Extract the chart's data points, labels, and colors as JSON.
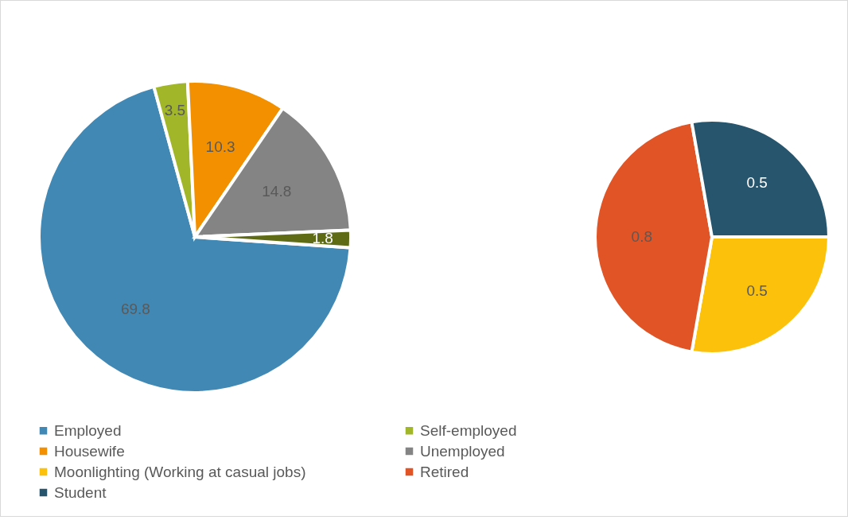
{
  "chart_data": [
    {
      "type": "pie",
      "categories": [
        "Employed",
        "Self-employed",
        "Housewife",
        "Unemployed",
        null
      ],
      "values": [
        69.8,
        3.5,
        10.3,
        14.8,
        1.8
      ],
      "colors": [
        "#4189b4",
        "#a2b62a",
        "#f39000",
        "#848484",
        "#5f6b15"
      ],
      "data_labels": true,
      "legend": "bottom"
    },
    {
      "type": "pie",
      "categories": [
        "Moonlighting (Working at casual jobs)",
        "Retired",
        "Student"
      ],
      "values": [
        0.5,
        0.8,
        0.5
      ],
      "colors": [
        "#fcc10a",
        "#e05426",
        "#27556d"
      ],
      "data_labels": true,
      "legend": "bottom"
    }
  ]
}
